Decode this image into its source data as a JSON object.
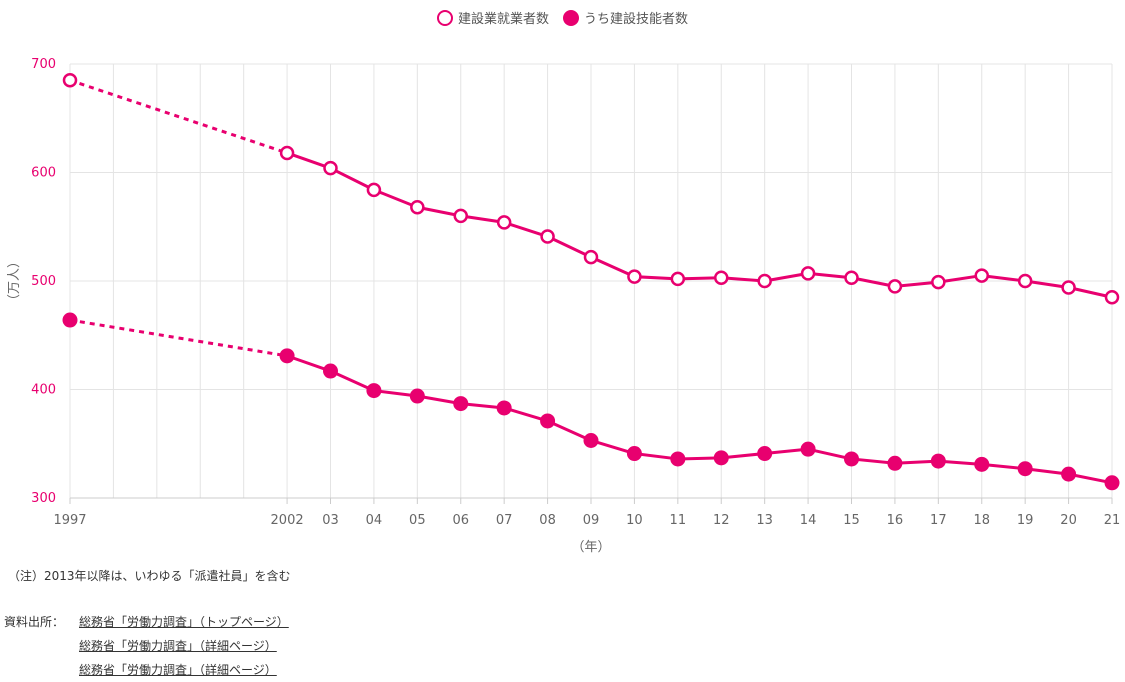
{
  "chart_data": {
    "type": "line",
    "categories": [
      "1997",
      "2002",
      "03",
      "04",
      "05",
      "06",
      "07",
      "08",
      "09",
      "10",
      "11",
      "12",
      "13",
      "14",
      "15",
      "16",
      "17",
      "18",
      "19",
      "20",
      "21"
    ],
    "years": [
      1997,
      2002,
      2003,
      2004,
      2005,
      2006,
      2007,
      2008,
      2009,
      2010,
      2011,
      2012,
      2013,
      2014,
      2015,
      2016,
      2017,
      2018,
      2019,
      2020,
      2021
    ],
    "series": [
      {
        "name": "建設業就業者数",
        "marker": "open",
        "values": [
          685,
          618,
          604,
          584,
          568,
          560,
          554,
          541,
          522,
          504,
          502,
          503,
          500,
          507,
          503,
          495,
          499,
          505,
          500,
          494,
          485
        ]
      },
      {
        "name": "うち建設技能者数",
        "marker": "filled",
        "values": [
          464,
          431,
          417,
          399,
          394,
          387,
          383,
          371,
          353,
          341,
          336,
          337,
          341,
          345,
          336,
          332,
          334,
          331,
          327,
          322,
          314
        ]
      }
    ],
    "ylabel": "（万人）",
    "xlabel": "（年）",
    "ylim": [
      300,
      700
    ],
    "yticks": [
      300,
      400,
      500,
      600,
      700
    ],
    "dashed_segment": [
      "1997",
      "2002"
    ],
    "grid": true,
    "legend_position": "top-center",
    "color": "#e8006f"
  },
  "note": "（注）2013年以降は、いわゆる「派遣社員」を含む",
  "sources": {
    "label": "資料出所：",
    "links": [
      "総務省「労働力調査」（トップページ）",
      "総務省「労働力調査」（詳細ページ）",
      "総務省「労働力調査」（詳細ページ）"
    ]
  }
}
